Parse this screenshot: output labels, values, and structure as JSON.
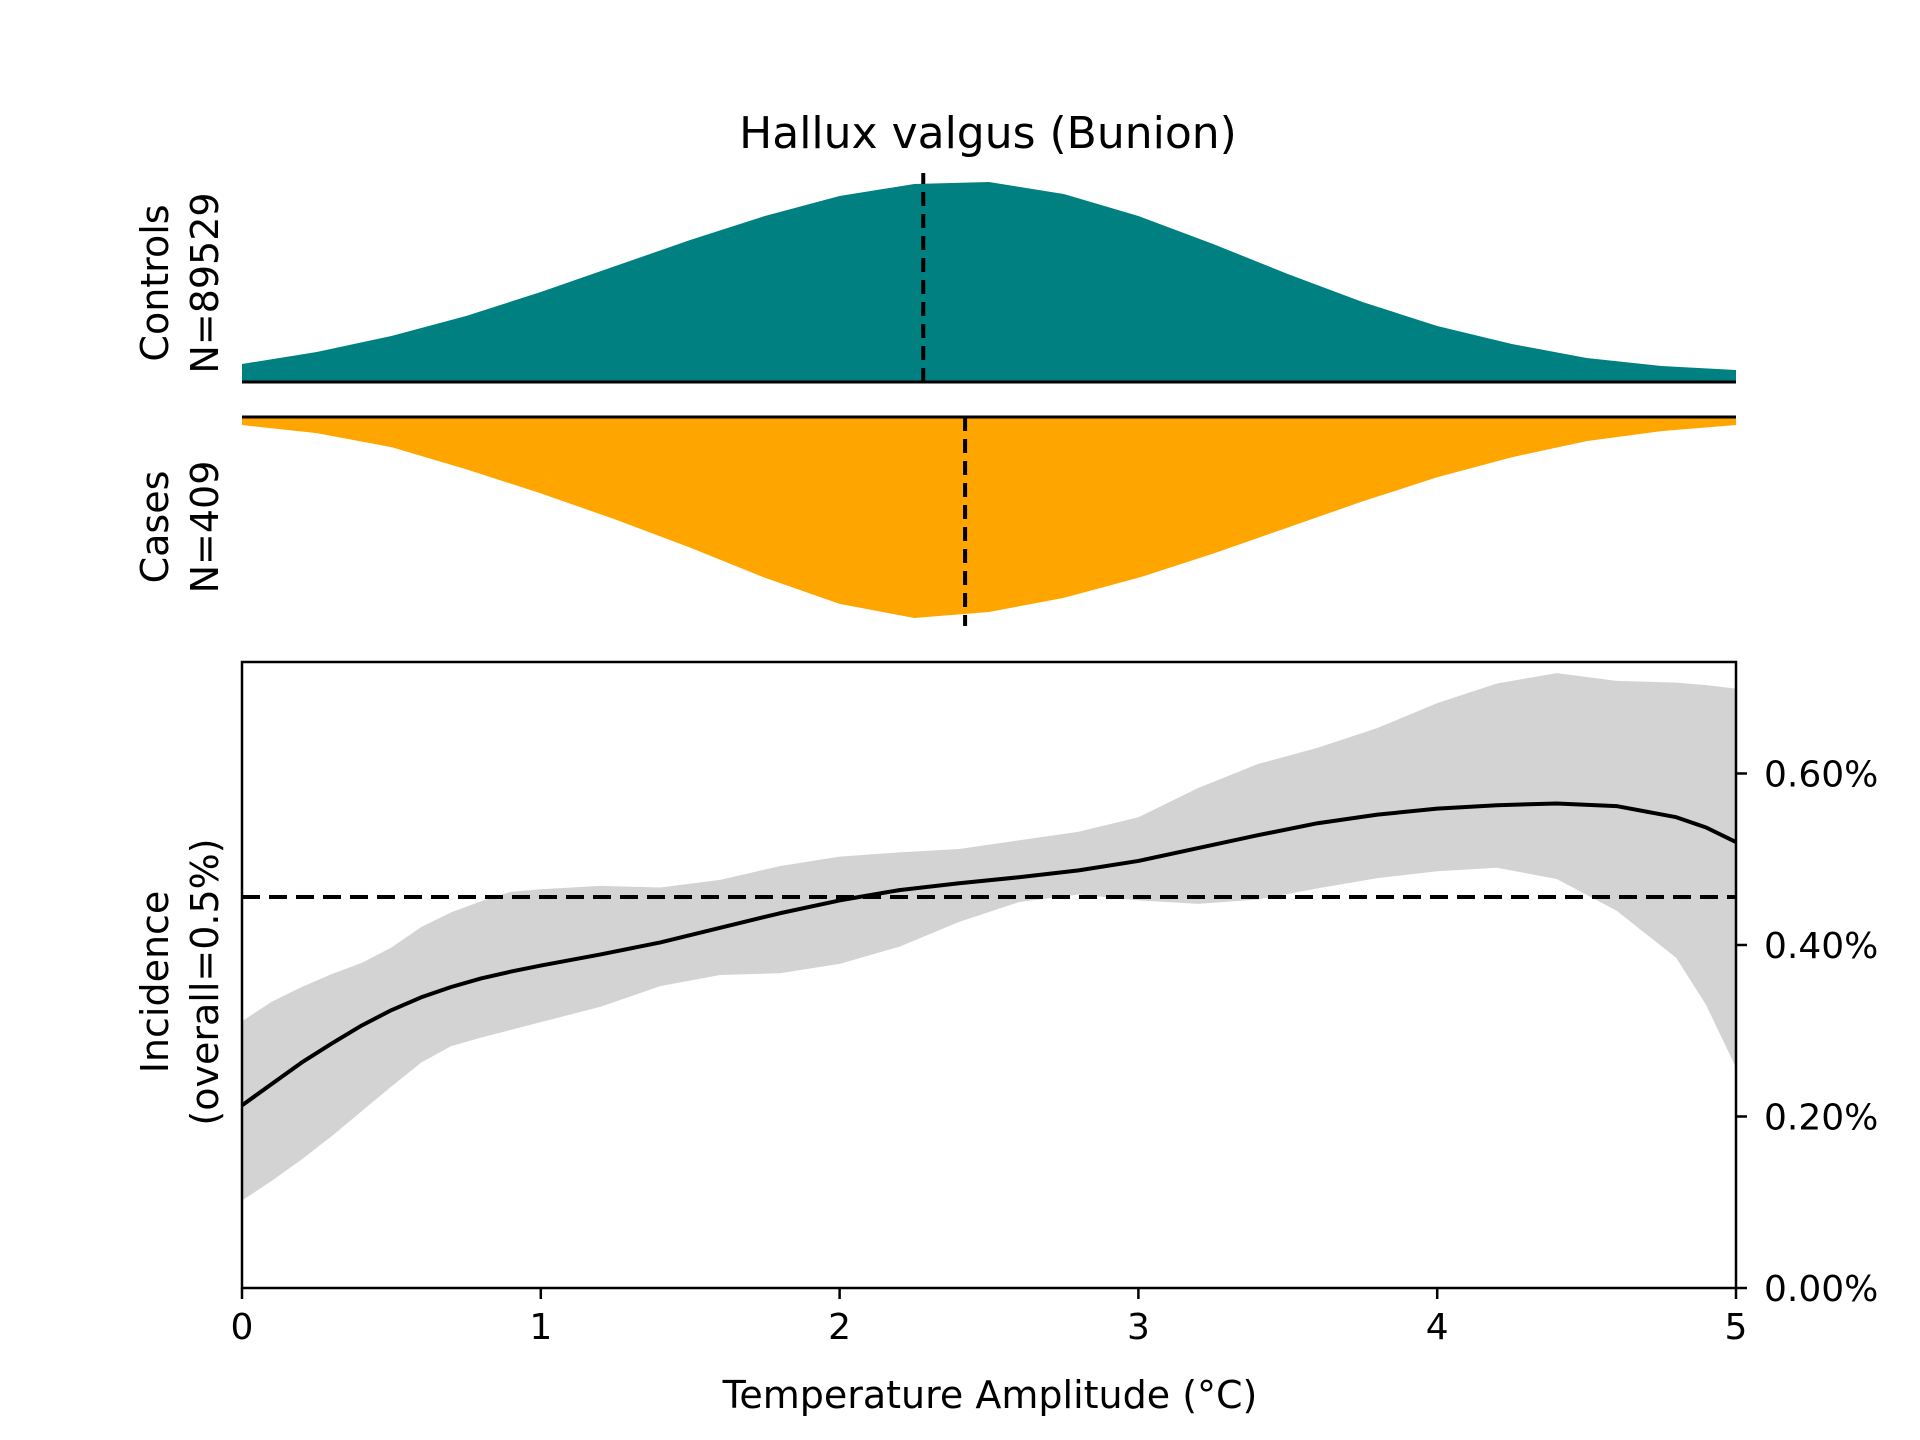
{
  "chart_data": {
    "type": "area",
    "title": "Hallux valgus (Bunion)",
    "colors": {
      "controls": "#008080",
      "cases": "#ffa500",
      "ci_band": "#d3d3d3",
      "line": "#000000"
    },
    "controls": {
      "label_line1": "Controls",
      "label_line2": "N=89529",
      "median": 2.28,
      "density_x": [
        0,
        0.25,
        0.5,
        0.75,
        1.0,
        1.25,
        1.5,
        1.75,
        2.0,
        2.25,
        2.5,
        2.75,
        3.0,
        3.25,
        3.5,
        3.75,
        4.0,
        4.25,
        4.5,
        4.75,
        5.0
      ],
      "density_y": [
        0.09,
        0.15,
        0.23,
        0.33,
        0.45,
        0.58,
        0.71,
        0.83,
        0.93,
        0.99,
        1.0,
        0.94,
        0.83,
        0.69,
        0.54,
        0.4,
        0.28,
        0.19,
        0.12,
        0.08,
        0.06
      ]
    },
    "cases": {
      "label_line1": "Cases",
      "label_line2": "N=409",
      "median": 2.42,
      "density_x": [
        0,
        0.25,
        0.5,
        0.75,
        1.0,
        1.25,
        1.5,
        1.75,
        2.0,
        2.25,
        2.5,
        2.75,
        3.0,
        3.25,
        3.5,
        3.75,
        4.0,
        4.25,
        4.5,
        4.75,
        5.0
      ],
      "density_y": [
        0.04,
        0.08,
        0.15,
        0.26,
        0.38,
        0.51,
        0.65,
        0.8,
        0.93,
        1.0,
        0.97,
        0.9,
        0.8,
        0.68,
        0.55,
        0.42,
        0.3,
        0.2,
        0.12,
        0.07,
        0.04
      ]
    },
    "incidence": {
      "ylabel_line1": "Incidence",
      "ylabel_line2": "(overall=0.5%)",
      "xlabel": "Temperature Amplitude (°C)",
      "xlim": [
        0,
        5
      ],
      "ylim": [
        0,
        0.0073
      ],
      "x_ticks": [
        "0",
        "1",
        "2",
        "3",
        "4",
        "5"
      ],
      "y_ticks": [
        "0.00%",
        "0.20%",
        "0.40%",
        "0.60%"
      ],
      "y_tick_values": [
        0,
        0.002,
        0.004,
        0.006
      ],
      "overall_rate": 0.00456,
      "x": [
        0,
        0.1,
        0.2,
        0.3,
        0.4,
        0.5,
        0.6,
        0.7,
        0.8,
        0.9,
        1.0,
        1.2,
        1.4,
        1.6,
        1.8,
        2.0,
        2.2,
        2.4,
        2.6,
        2.8,
        3.0,
        3.2,
        3.4,
        3.6,
        3.8,
        4.0,
        4.2,
        4.4,
        4.6,
        4.8,
        4.9,
        5.0
      ],
      "mean": [
        0.00213,
        0.00238,
        0.00263,
        0.00285,
        0.00306,
        0.00324,
        0.00339,
        0.00351,
        0.00361,
        0.00369,
        0.00376,
        0.00389,
        0.00403,
        0.0042,
        0.00437,
        0.00452,
        0.00464,
        0.00472,
        0.00479,
        0.00487,
        0.00498,
        0.00513,
        0.00528,
        0.00542,
        0.00552,
        0.00559,
        0.00563,
        0.00565,
        0.00562,
        0.00549,
        0.00537,
        0.0052
      ],
      "lower": [
        0.00102,
        0.00125,
        0.0015,
        0.00177,
        0.00206,
        0.00235,
        0.00263,
        0.00282,
        0.00292,
        0.00301,
        0.0031,
        0.00328,
        0.00352,
        0.00365,
        0.00367,
        0.00378,
        0.00398,
        0.00427,
        0.0045,
        0.00459,
        0.00452,
        0.00448,
        0.00453,
        0.00466,
        0.00478,
        0.00486,
        0.0049,
        0.00477,
        0.0044,
        0.00385,
        0.0033,
        0.00257
      ],
      "upper": [
        0.00311,
        0.00334,
        0.00351,
        0.00366,
        0.00379,
        0.00397,
        0.00421,
        0.00438,
        0.00451,
        0.00462,
        0.00465,
        0.00469,
        0.00467,
        0.00476,
        0.00492,
        0.00503,
        0.00508,
        0.00512,
        0.00522,
        0.00532,
        0.00549,
        0.00583,
        0.00611,
        0.0063,
        0.00653,
        0.00682,
        0.00705,
        0.00717,
        0.00708,
        0.00706,
        0.00703,
        0.00699
      ]
    }
  }
}
